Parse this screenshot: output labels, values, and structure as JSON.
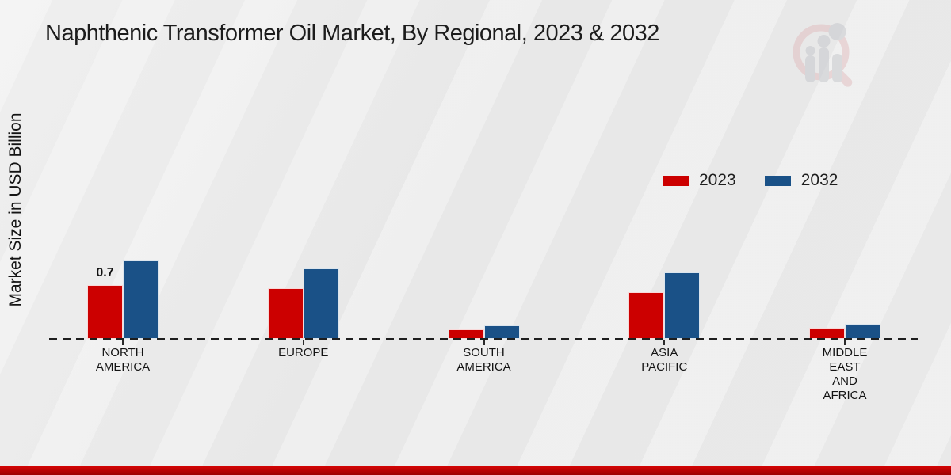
{
  "title": "Naphthenic Transformer Oil Market, By Regional, 2023 & 2032",
  "y_axis_label": "Market Size in USD Billion",
  "legend": [
    {
      "label": "2023",
      "color": "#cc0000"
    },
    {
      "label": "2032",
      "color": "#1a5187"
    }
  ],
  "logo_icon": "bar-chart-magnifier-logo",
  "branding": {
    "footer_bar_color_top": "#d40404",
    "footer_bar_color_bottom": "#9e0202"
  },
  "chart_data": {
    "type": "bar",
    "title": "Naphthenic Transformer Oil Market, By Regional, 2023 & 2032",
    "xlabel": "",
    "ylabel": "Market Size in USD Billion",
    "ylim": [
      0,
      1.1
    ],
    "grid": false,
    "legend_position": "right-middle",
    "baseline_style": "dashed",
    "categories": [
      "NORTH AMERICA",
      "EUROPE",
      "SOUTH AMERICA",
      "ASIA PACIFIC",
      "MIDDLE EAST AND AFRICA"
    ],
    "tick_labels": [
      "NORTH\nAMERICA",
      "EUROPE",
      "SOUTH\nAMERICA",
      "ASIA\nPACIFIC",
      "MIDDLE\nEAST\nAND\nAFRICA"
    ],
    "series": [
      {
        "name": "2023",
        "color": "#cc0000",
        "values": [
          0.7,
          0.66,
          0.12,
          0.61,
          0.14
        ]
      },
      {
        "name": "2032",
        "color": "#1a5187",
        "values": [
          1.02,
          0.92,
          0.18,
          0.87,
          0.2
        ]
      }
    ],
    "data_labels": [
      {
        "series": "2023",
        "category": "NORTH AMERICA",
        "text": "0.7"
      }
    ]
  }
}
